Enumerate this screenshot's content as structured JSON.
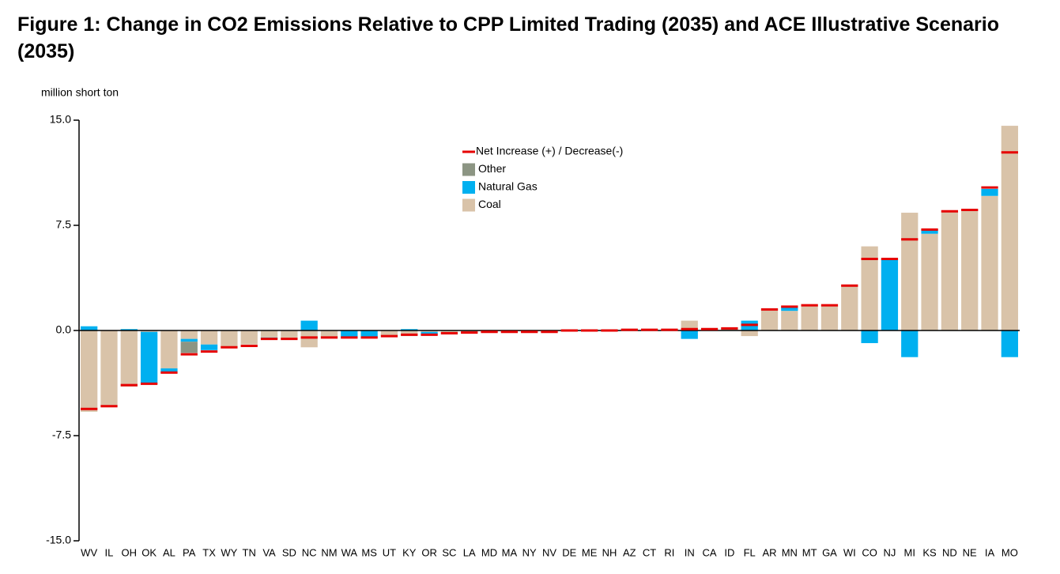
{
  "chart_data": {
    "type": "stacked_bar",
    "title": "Figure 1: Change in CO2 Emissions Relative to CPP Limited Trading (2035) and ACE Illustrative Scenario (2035)",
    "y_axis_label": "million short ton",
    "categories": [
      "WV",
      "IL",
      "OH",
      "OK",
      "AL",
      "PA",
      "TX",
      "WY",
      "TN",
      "VA",
      "SD",
      "NC",
      "NM",
      "WA",
      "MS",
      "UT",
      "KY",
      "OR",
      "SC",
      "LA",
      "MD",
      "MA",
      "NY",
      "NV",
      "DE",
      "ME",
      "NH",
      "AZ",
      "CT",
      "RI",
      "IN",
      "CA",
      "ID",
      "FL",
      "AR",
      "MN",
      "MT",
      "GA",
      "WI",
      "CO",
      "NJ",
      "MI",
      "KS",
      "ND",
      "NE",
      "IA",
      "MO"
    ],
    "series": [
      {
        "name": "Coal",
        "color": "#d9c3a9",
        "values": [
          -5.8,
          -5.4,
          -4.0,
          -0.1,
          -2.7,
          -0.6,
          -1.0,
          -1.2,
          -1.0,
          -0.5,
          -0.6,
          -1.2,
          -0.5,
          0,
          0,
          -0.4,
          -0.4,
          -0.1,
          -0.2,
          -0.15,
          -0.1,
          -0.1,
          -0.1,
          -0.1,
          0,
          0,
          0,
          0.05,
          0.05,
          0.05,
          0.7,
          0.1,
          0.15,
          -0.4,
          1.5,
          1.4,
          1.8,
          1.8,
          3.2,
          6.0,
          0,
          8.4,
          6.9,
          8.5,
          8.6,
          9.6,
          14.6
        ]
      },
      {
        "name": "Natural Gas",
        "color": "#00b0f0",
        "values": [
          0.3,
          0,
          0.1,
          -3.7,
          -0.3,
          -0.2,
          -0.4,
          0,
          0,
          -0.1,
          0,
          0.7,
          0,
          -0.5,
          -0.5,
          0,
          0.1,
          -0.2,
          0,
          0,
          0,
          0,
          0,
          0,
          0,
          0,
          0,
          0,
          0,
          0,
          -0.6,
          0,
          0,
          0.7,
          0,
          0.3,
          0,
          0,
          0,
          -0.9,
          5.1,
          -1.9,
          0.3,
          0,
          0,
          0.5,
          -1.9
        ]
      },
      {
        "name": "Other",
        "color": "#8c9583",
        "values": [
          0,
          0,
          0,
          0,
          0,
          -0.8,
          0,
          0,
          0,
          0,
          0,
          0,
          0,
          0,
          0,
          0,
          0,
          0,
          0,
          0,
          0,
          0,
          0,
          0,
          0,
          0,
          0,
          0,
          0,
          0,
          0,
          0,
          0,
          0,
          0,
          0,
          0,
          0,
          0,
          0,
          0,
          0,
          0,
          0,
          0,
          0,
          0
        ]
      }
    ],
    "net": {
      "name": "Net Increase (+) / Decrease(-)",
      "color": "#e60000",
      "values": [
        -5.6,
        -5.4,
        -3.9,
        -3.8,
        -3.0,
        -1.7,
        -1.5,
        -1.2,
        -1.1,
        -0.6,
        -0.6,
        -0.5,
        -0.5,
        -0.5,
        -0.5,
        -0.4,
        -0.3,
        -0.3,
        -0.2,
        -0.15,
        -0.1,
        -0.1,
        -0.1,
        -0.1,
        0,
        0,
        0,
        0.05,
        0.05,
        0.05,
        0.1,
        0.1,
        0.15,
        0.4,
        1.5,
        1.7,
        1.8,
        1.8,
        3.2,
        5.1,
        5.1,
        6.5,
        7.2,
        8.5,
        8.6,
        10.2,
        12.7
      ]
    },
    "ylim": [
      -15,
      15
    ],
    "yticks": [
      {
        "value": -15,
        "label": "-15.0"
      },
      -7.5,
      {
        "value": 0,
        "label": "0.0"
      },
      7.5,
      {
        "value": 15,
        "label": "15.0"
      }
    ],
    "grid": false
  }
}
